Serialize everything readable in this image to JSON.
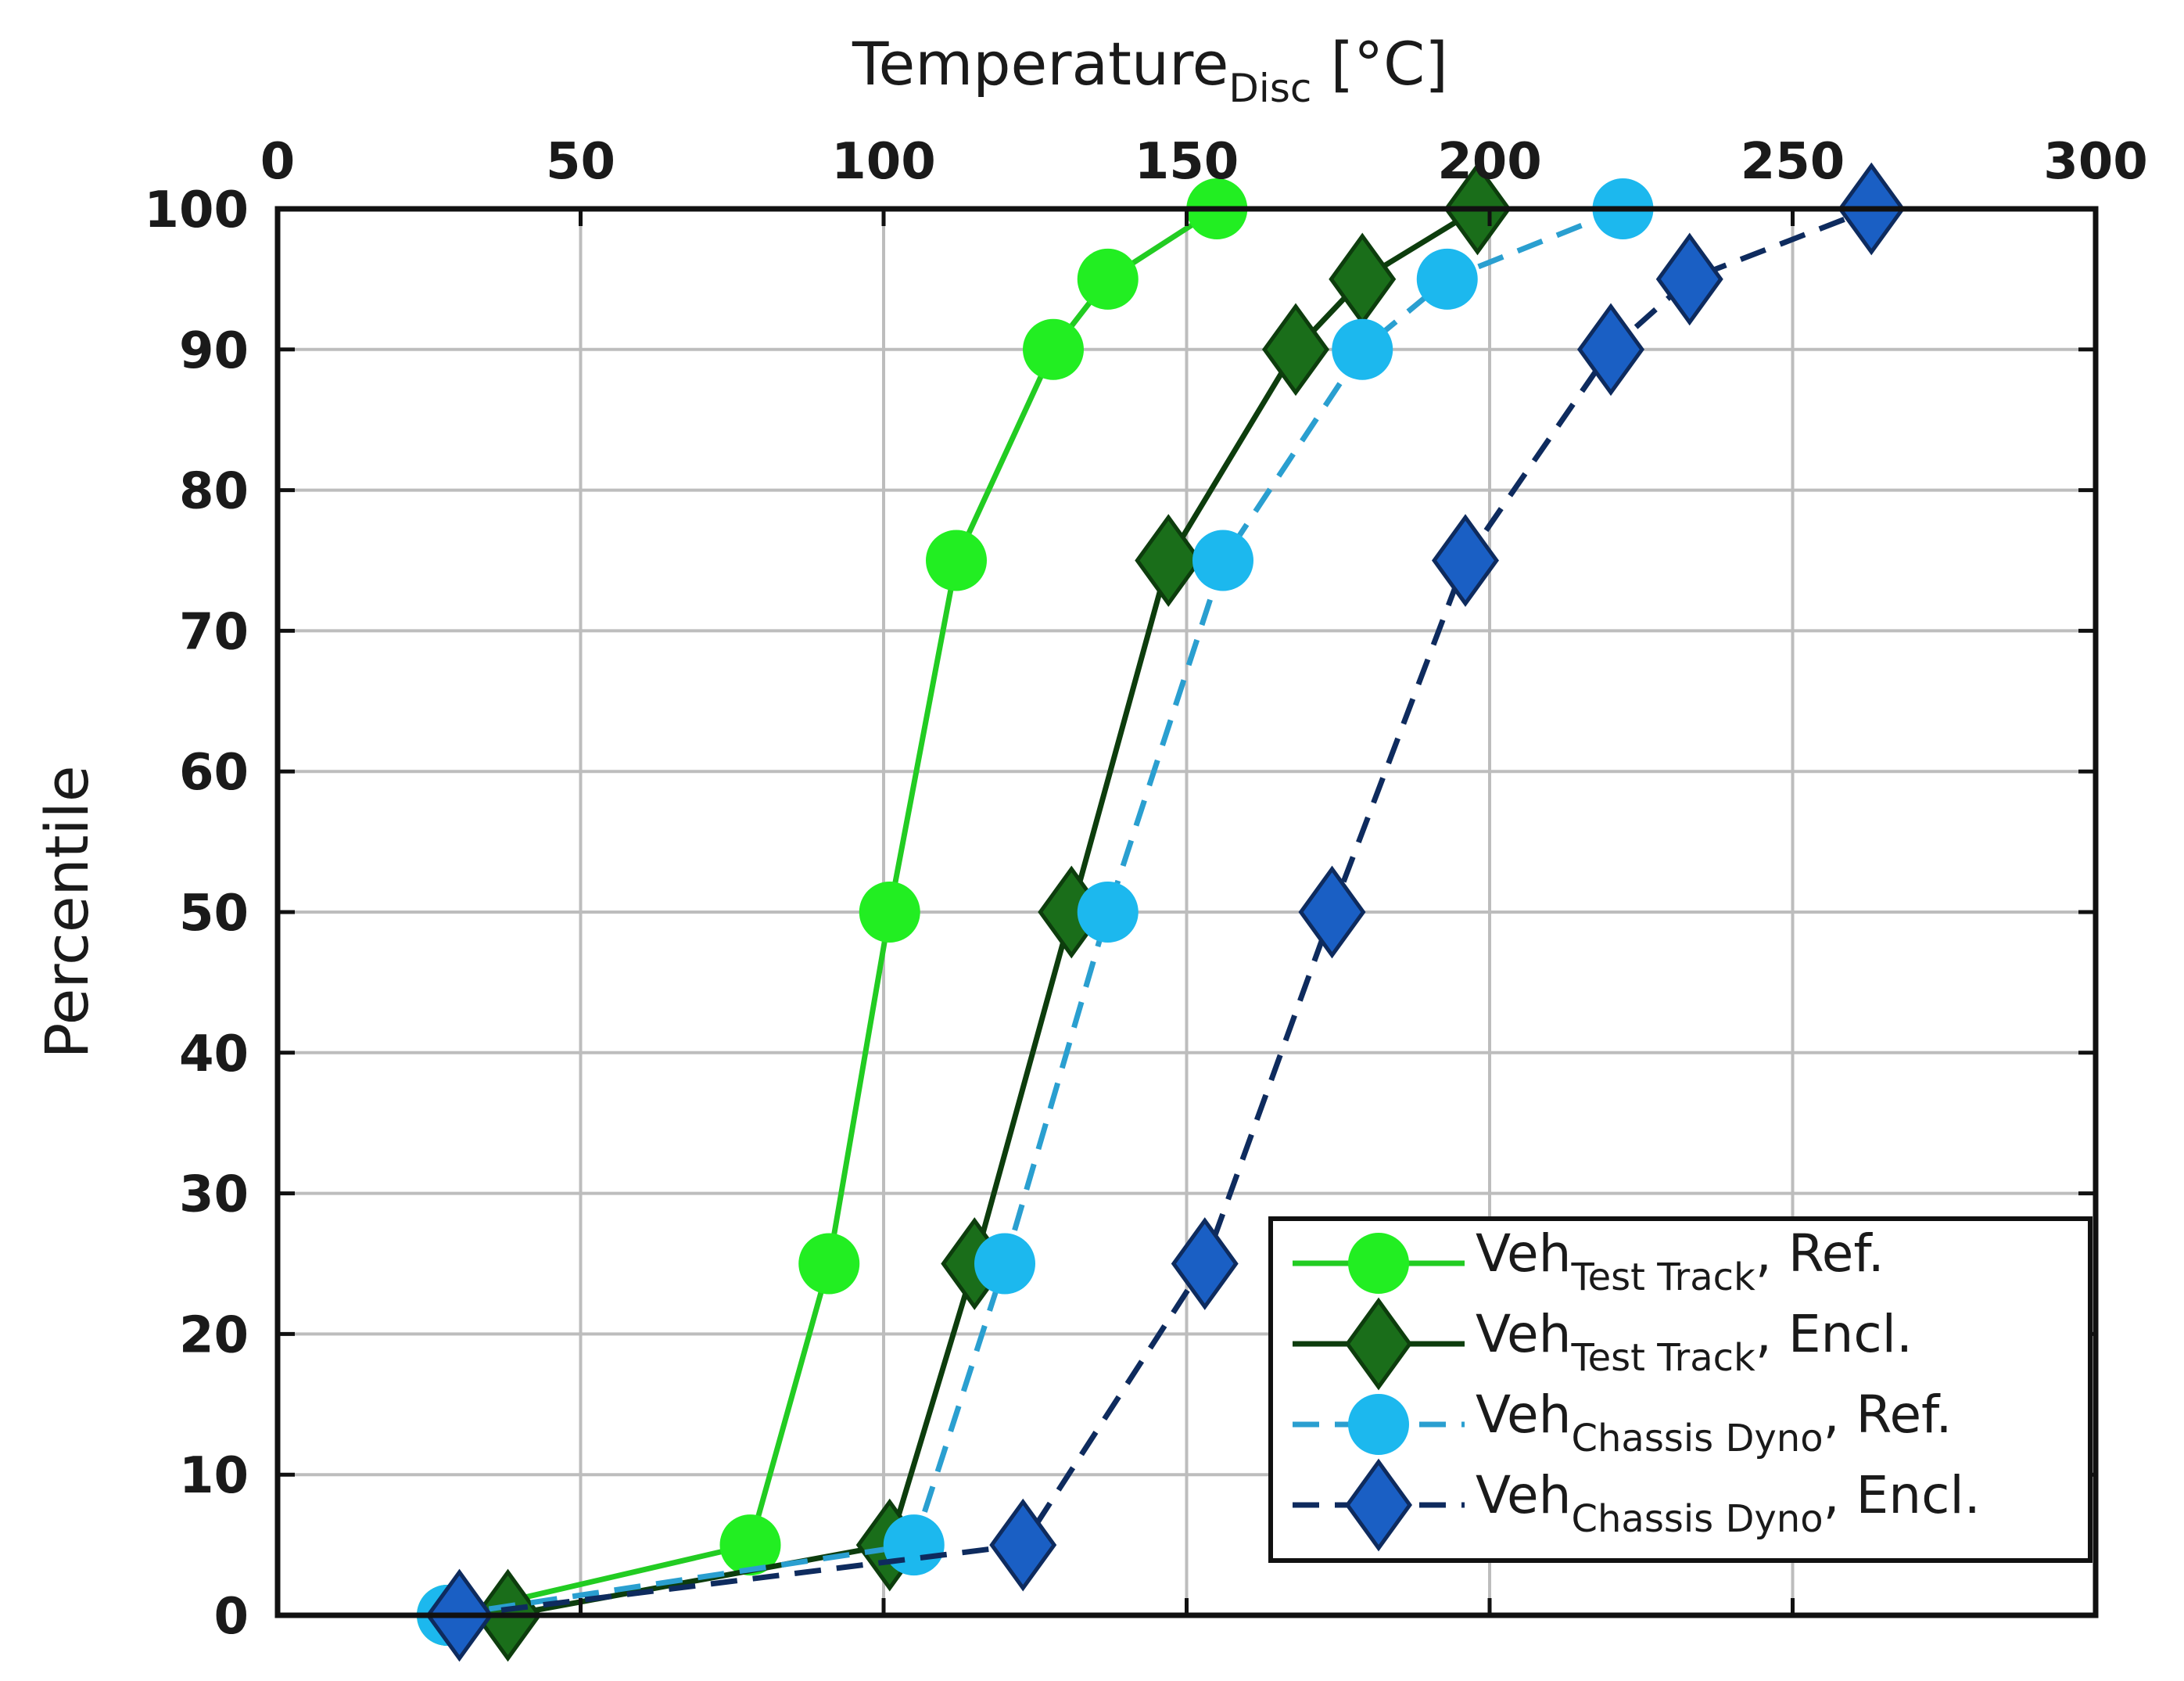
{
  "chart_data": {
    "type": "line",
    "title": "",
    "xlabel": "Temperature",
    "xlabel_subscript": "Disc",
    "xlabel_unit": " [°C]",
    "ylabel": "Percentile",
    "xlim": [
      0,
      300
    ],
    "ylim": [
      0,
      100
    ],
    "xticks": [
      0,
      50,
      100,
      150,
      200,
      250,
      300
    ],
    "yticks": [
      0,
      10,
      20,
      30,
      40,
      50,
      60,
      70,
      80,
      90,
      100
    ],
    "x_axis_position": "top",
    "grid": true,
    "legend_position": "bottom-right",
    "series": [
      {
        "name": "Veh Test Track, Ref.",
        "label_main": "Veh",
        "label_sub": "Test Track",
        "label_suffix": ", Ref.",
        "color": "#22ee22",
        "line_color": "#22cc22",
        "marker": "circle",
        "dash": "solid",
        "x": [
          28,
          78,
          91,
          101,
          112,
          128,
          137,
          155
        ],
        "y": [
          0,
          5,
          25,
          50,
          75,
          90,
          95,
          100
        ]
      },
      {
        "name": "Veh Test Track, Encl.",
        "label_main": "Veh",
        "label_sub": "Test Track",
        "label_suffix": ", Encl.",
        "color": "#1a6e1a",
        "line_color": "#0d3d0d",
        "marker": "diamond",
        "dash": "solid",
        "x": [
          38,
          101,
          115,
          131,
          147,
          168,
          179,
          198
        ],
        "y": [
          0,
          5,
          25,
          50,
          75,
          90,
          95,
          100
        ]
      },
      {
        "name": "Veh Chassis Dyno, Ref.",
        "label_main": "Veh",
        "label_sub": "Chassis Dyno",
        "label_suffix": ", Ref.",
        "color": "#1cb8ee",
        "line_color": "#2a9fd0",
        "marker": "circle",
        "dash": "dashed",
        "x": [
          28,
          105,
          120,
          137,
          156,
          179,
          193,
          222
        ],
        "y": [
          0,
          5,
          25,
          50,
          75,
          90,
          95,
          100
        ]
      },
      {
        "name": "Veh Chassis Dyno, Encl.",
        "label_main": "Veh",
        "label_sub": "Chassis Dyno",
        "label_suffix": ", Encl.",
        "color": "#1a5fc4",
        "line_color": "#0e2b5e",
        "marker": "diamond",
        "dash": "dashed",
        "x": [
          30,
          123,
          153,
          174,
          196,
          220,
          233,
          263
        ],
        "y": [
          0,
          5,
          25,
          50,
          75,
          90,
          95,
          100
        ]
      }
    ]
  }
}
